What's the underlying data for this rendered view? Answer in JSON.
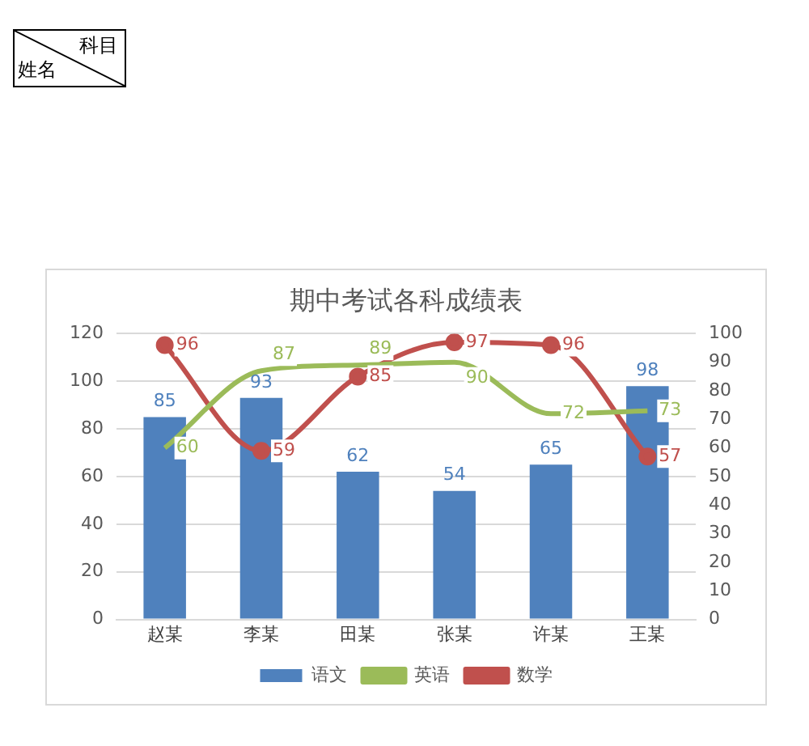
{
  "chart_data": {
    "type": "bar",
    "title": "期中考试各科成绩表",
    "categories": [
      "赵某",
      "李某",
      "田某",
      "张某",
      "许某",
      "王某"
    ],
    "series": [
      {
        "name": "语文",
        "color": "#4f81bd",
        "values": [
          85,
          93,
          62,
          54,
          65,
          98
        ]
      },
      {
        "name": "英语",
        "type": "line",
        "axis": "y2",
        "marker": "none",
        "color": "#9bbb59",
        "values": [
          60,
          87,
          89,
          90,
          72,
          73
        ]
      },
      {
        "name": "数学",
        "type": "line",
        "axis": "y2",
        "marker": "circle",
        "color": "#c0504d",
        "values": [
          96,
          59,
          85,
          97,
          96,
          57
        ]
      }
    ],
    "ylim": [
      0,
      120
    ],
    "yticks": [
      0,
      20,
      40,
      60,
      80,
      100,
      120
    ],
    "y2lim": [
      0,
      100
    ],
    "y2ticks": [
      0,
      10,
      20,
      30,
      40,
      50,
      60,
      70,
      80,
      90,
      100
    ],
    "grid": "y",
    "legend": "bottom",
    "data_labels": true,
    "annotations": [
      "科目",
      "姓名"
    ]
  }
}
